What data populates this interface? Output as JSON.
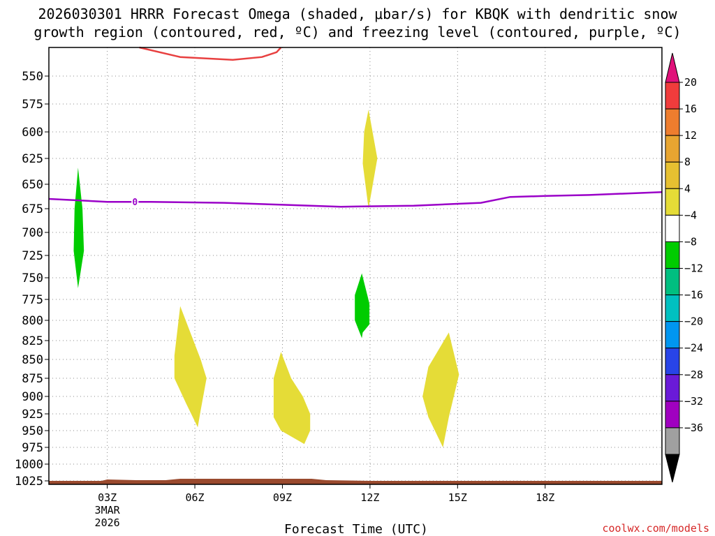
{
  "title_line1": "2026030301 HRRR Forecast Omega (shaded, μbar/s) for KBQK with dendritic snow",
  "title_line2": "growth region (contoured, red, ºC) and freezing level (contoured, purple, ºC)",
  "credit": "coolwx.com/models",
  "chart_data": {
    "type": "heatmap",
    "xlabel": "Forecast Time (UTC)",
    "x_range_hours": [
      0,
      21
    ],
    "x_ticks": [
      {
        "hour": 2,
        "label": "03Z",
        "sub1": "3MAR",
        "sub2": "2026"
      },
      {
        "hour": 5,
        "label": "06Z",
        "sub1": "",
        "sub2": ""
      },
      {
        "hour": 8,
        "label": "09Z",
        "sub1": "",
        "sub2": ""
      },
      {
        "hour": 11,
        "label": "12Z",
        "sub1": "",
        "sub2": ""
      },
      {
        "hour": 14,
        "label": "15Z",
        "sub1": "",
        "sub2": ""
      },
      {
        "hour": 17,
        "label": "18Z",
        "sub1": "",
        "sub2": ""
      }
    ],
    "y_range_hpa": [
      520,
      1035
    ],
    "y_ticks": [
      550,
      575,
      600,
      625,
      650,
      675,
      700,
      725,
      750,
      775,
      800,
      825,
      850,
      875,
      900,
      925,
      950,
      975,
      1000,
      1025
    ],
    "grid": true,
    "colorbar": {
      "levels": [
        20,
        16,
        12,
        8,
        4,
        -4,
        -8,
        -12,
        -16,
        -20,
        -24,
        -28,
        -32,
        -36
      ],
      "bins": [
        {
          "color": "#f03c3c"
        },
        {
          "color": "#ee7d2e"
        },
        {
          "color": "#e8a531"
        },
        {
          "color": "#e6c031"
        },
        {
          "color": "#e5dc37"
        },
        {
          "color": "#ffffff"
        },
        {
          "color": "#00cc00"
        },
        {
          "color": "#00bf80"
        },
        {
          "color": "#00c0c0"
        },
        {
          "color": "#0096f0"
        },
        {
          "color": "#2844e8"
        },
        {
          "color": "#6a1ad8"
        },
        {
          "color": "#a000c0"
        },
        {
          "color": "#a0a0a0"
        }
      ],
      "top_arrow_color": "#e0127a",
      "bottom_arrow_color": "#000000"
    },
    "shaded_regions": [
      {
        "color": "#00cc00",
        "points": [
          [
            1.0,
            634
          ],
          [
            1.15,
            675
          ],
          [
            1.2,
            720
          ],
          [
            1.0,
            762
          ],
          [
            0.85,
            720
          ],
          [
            0.88,
            675
          ]
        ]
      },
      {
        "color": "#e5dc37",
        "points": [
          [
            4.5,
            783
          ],
          [
            5.2,
            850
          ],
          [
            5.4,
            875
          ],
          [
            5.2,
            920
          ],
          [
            5.1,
            945
          ],
          [
            4.7,
            910
          ],
          [
            4.3,
            875
          ],
          [
            4.3,
            845
          ]
        ]
      },
      {
        "color": "#e5dc37",
        "points": [
          [
            7.95,
            840
          ],
          [
            8.3,
            875
          ],
          [
            8.7,
            900
          ],
          [
            8.95,
            925
          ],
          [
            8.95,
            950
          ],
          [
            8.75,
            970
          ],
          [
            7.95,
            950
          ],
          [
            7.7,
            930
          ],
          [
            7.7,
            875
          ]
        ]
      },
      {
        "color": "#00cc00",
        "points": [
          [
            10.72,
            745
          ],
          [
            10.98,
            780
          ],
          [
            10.98,
            805
          ],
          [
            10.75,
            815
          ],
          [
            10.72,
            822
          ],
          [
            10.48,
            800
          ],
          [
            10.48,
            770
          ]
        ]
      },
      {
        "color": "#e5dc37",
        "points": [
          [
            10.95,
            580
          ],
          [
            11.25,
            625
          ],
          [
            10.95,
            675
          ],
          [
            10.75,
            630
          ],
          [
            10.8,
            600
          ]
        ]
      },
      {
        "color": "#e5dc37",
        "points": [
          [
            13.7,
            815
          ],
          [
            14.05,
            870
          ],
          [
            13.7,
            930
          ],
          [
            13.5,
            975
          ],
          [
            13.0,
            930
          ],
          [
            12.8,
            900
          ],
          [
            13.0,
            860
          ]
        ]
      }
    ],
    "dendritic_contour": {
      "color": "#e84040",
      "points": [
        [
          3.1,
          520
        ],
        [
          4.5,
          530
        ],
        [
          6.3,
          533
        ],
        [
          7.3,
          530
        ],
        [
          7.8,
          525
        ],
        [
          7.95,
          520
        ]
      ]
    },
    "freezing_level": {
      "color": "#9a00c8",
      "label": "0",
      "label_hour": 2.95,
      "points": [
        [
          0,
          665
        ],
        [
          2.0,
          668
        ],
        [
          3.5,
          668
        ],
        [
          6.0,
          669
        ],
        [
          8.0,
          671
        ],
        [
          10.0,
          673
        ],
        [
          12.5,
          672
        ],
        [
          14.0,
          670
        ],
        [
          14.8,
          669
        ],
        [
          15.8,
          663
        ],
        [
          17.0,
          662
        ],
        [
          18.5,
          661
        ],
        [
          21.0,
          658
        ]
      ]
    },
    "ground_color": "#9a4a2e"
  }
}
